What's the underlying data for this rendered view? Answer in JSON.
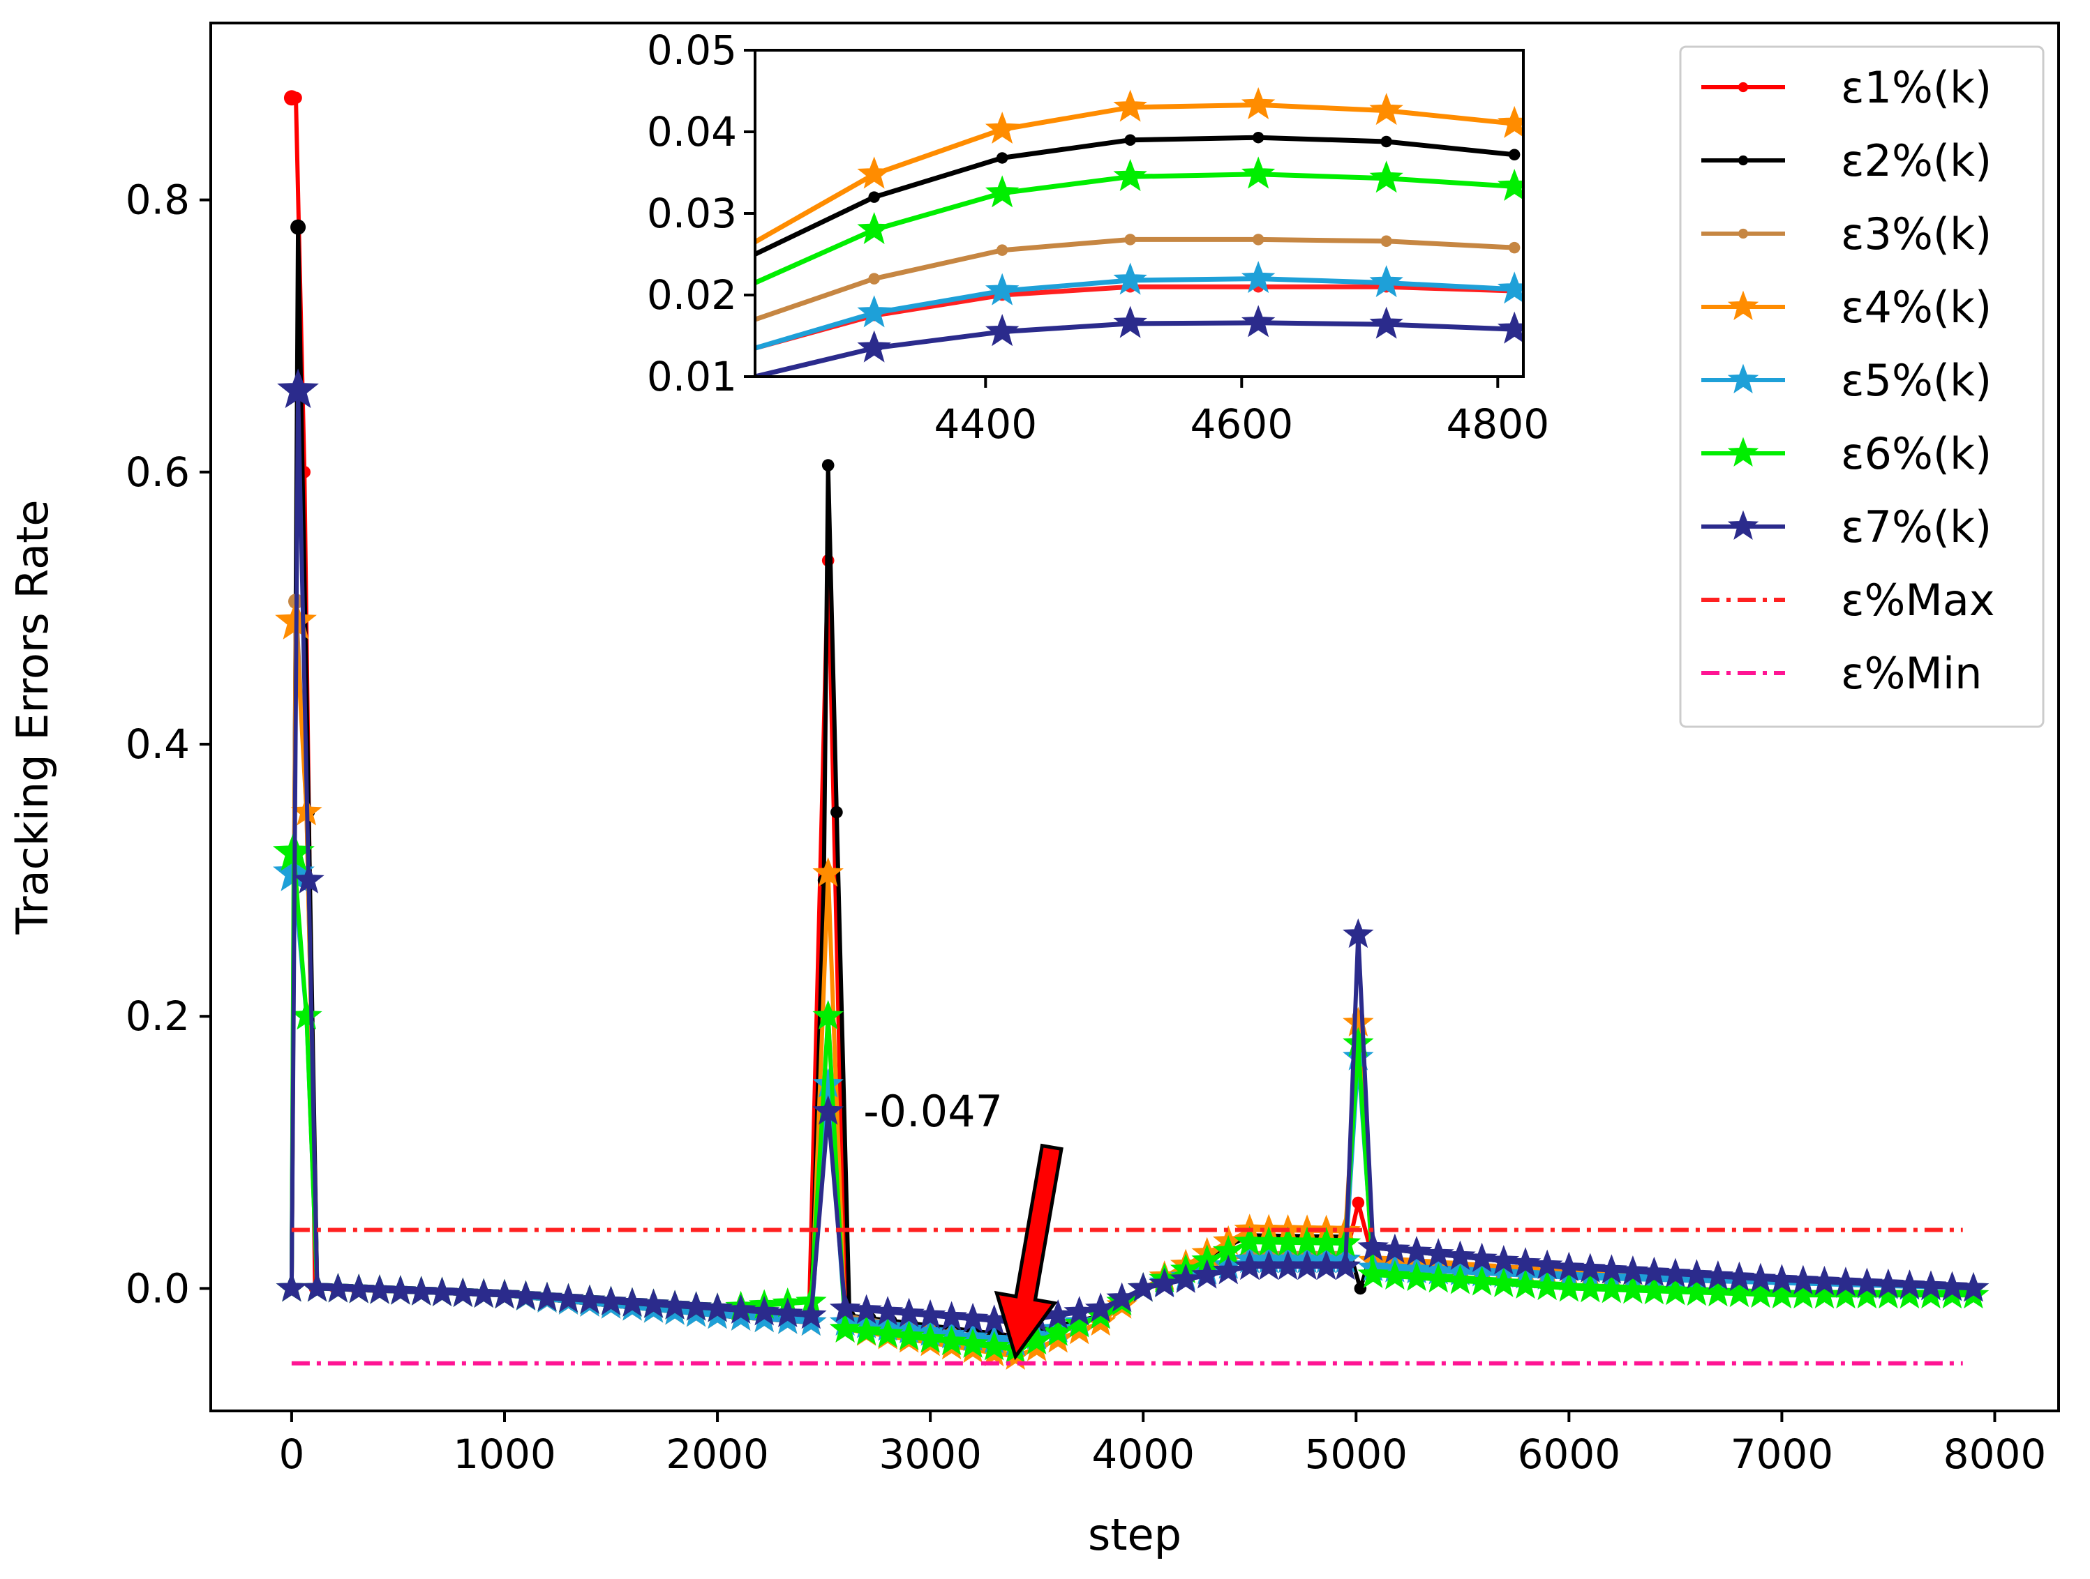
{
  "chart_data": [
    {
      "id": "main",
      "type": "line",
      "title": "",
      "xlabel": "step",
      "ylabel": "Tracking Errors Rate",
      "xlim": [
        -380,
        8300
      ],
      "ylim": [
        -0.09,
        0.93
      ],
      "xticks": [
        0,
        1000,
        2000,
        3000,
        4000,
        5000,
        6000,
        7000,
        8000
      ],
      "xtick_labels": [
        "0",
        "1000",
        "2000",
        "3000",
        "4000",
        "5000",
        "6000",
        "7000",
        "8000"
      ],
      "yticks": [
        0.0,
        0.2,
        0.4,
        0.6,
        0.8
      ],
      "ytick_labels": [
        "0.0",
        "0.2",
        "0.4",
        "0.6",
        "0.8"
      ],
      "grid": false,
      "legend_position": "top-right",
      "series": [
        {
          "name": "ε1%(k)",
          "color": "#ff0000",
          "marker": "dot",
          "points": [
            [
              0,
              0.875
            ],
            [
              20,
              0.875
            ],
            [
              60,
              0.6
            ],
            [
              110,
              0.0
            ],
            [
              1000,
              -0.005
            ],
            [
              2000,
              -0.02
            ],
            [
              2430,
              -0.025
            ],
            [
              2520,
              0.535
            ],
            [
              2600,
              -0.02
            ],
            [
              3400,
              -0.035
            ],
            [
              3800,
              -0.02
            ],
            [
              4000,
              0.0
            ],
            [
              4500,
              0.021
            ],
            [
              4950,
              0.021
            ],
            [
              5010,
              0.063
            ],
            [
              5080,
              0.021
            ],
            [
              6000,
              0.012
            ],
            [
              7000,
              0.006
            ],
            [
              7900,
              0.0
            ]
          ]
        },
        {
          "name": "ε2%(k)",
          "color": "#000000",
          "marker": "dot",
          "points": [
            [
              0,
              0.0
            ],
            [
              30,
              0.78
            ],
            [
              80,
              0.35
            ],
            [
              120,
              0.0
            ],
            [
              1000,
              -0.005
            ],
            [
              2000,
              -0.02
            ],
            [
              2440,
              -0.025
            ],
            [
              2500,
              0.3
            ],
            [
              2520,
              0.605
            ],
            [
              2560,
              0.35
            ],
            [
              2620,
              -0.02
            ],
            [
              3400,
              -0.035
            ],
            [
              3800,
              -0.02
            ],
            [
              4000,
              0.0
            ],
            [
              4500,
              0.039
            ],
            [
              4950,
              0.038
            ],
            [
              5020,
              0.0
            ],
            [
              5080,
              0.03
            ],
            [
              6000,
              0.015
            ],
            [
              7000,
              0.006
            ],
            [
              7900,
              0.0
            ]
          ]
        },
        {
          "name": "ε3%(k)",
          "color": "#c68642",
          "marker": "dot",
          "points": [
            [
              0,
              0.0
            ],
            [
              20,
              0.505
            ],
            [
              70,
              0.35
            ],
            [
              120,
              0.0
            ],
            [
              1000,
              -0.005
            ],
            [
              2000,
              -0.02
            ],
            [
              2440,
              -0.025
            ],
            [
              2520,
              0.2
            ],
            [
              2600,
              -0.02
            ],
            [
              3400,
              -0.04
            ],
            [
              3800,
              -0.02
            ],
            [
              4000,
              0.0
            ],
            [
              4500,
              0.026
            ],
            [
              4950,
              0.026
            ],
            [
              5010,
              0.2
            ],
            [
              5080,
              0.02
            ],
            [
              6000,
              0.01
            ],
            [
              7000,
              0.005
            ],
            [
              7900,
              0.0
            ]
          ]
        },
        {
          "name": "ε4%(k)",
          "color": "#ff8c00",
          "marker": "star",
          "points": [
            [
              0,
              0.0
            ],
            [
              20,
              0.49
            ],
            [
              70,
              0.35
            ],
            [
              120,
              0.0
            ],
            [
              1000,
              -0.005
            ],
            [
              2000,
              -0.02
            ],
            [
              2440,
              -0.025
            ],
            [
              2520,
              0.305
            ],
            [
              2600,
              -0.03
            ],
            [
              3400,
              -0.05
            ],
            [
              3800,
              -0.025
            ],
            [
              4000,
              0.0
            ],
            [
              4500,
              0.043
            ],
            [
              4950,
              0.042
            ],
            [
              5010,
              0.195
            ],
            [
              5080,
              0.02
            ],
            [
              6000,
              0.01
            ],
            [
              7000,
              0.005
            ],
            [
              7900,
              0.0
            ]
          ]
        },
        {
          "name": "ε5%(k)",
          "color": "#1ea0d8",
          "marker": "star",
          "points": [
            [
              0,
              0.0
            ],
            [
              10,
              0.305
            ],
            [
              70,
              0.2
            ],
            [
              120,
              0.0
            ],
            [
              1000,
              -0.005
            ],
            [
              2000,
              -0.02
            ],
            [
              2440,
              -0.025
            ],
            [
              2520,
              0.15
            ],
            [
              2600,
              -0.025
            ],
            [
              3400,
              -0.04
            ],
            [
              3800,
              -0.02
            ],
            [
              4000,
              0.0
            ],
            [
              4500,
              0.021
            ],
            [
              4950,
              0.021
            ],
            [
              5010,
              0.17
            ],
            [
              5080,
              0.015
            ],
            [
              6000,
              0.008
            ],
            [
              7000,
              0.004
            ],
            [
              7900,
              0.0
            ]
          ]
        },
        {
          "name": "ε6%(k)",
          "color": "#00ee00",
          "marker": "star",
          "points": [
            [
              0,
              0.0
            ],
            [
              10,
              0.32
            ],
            [
              70,
              0.2
            ],
            [
              120,
              0.0
            ],
            [
              1000,
              -0.005
            ],
            [
              2000,
              -0.015
            ],
            [
              2440,
              -0.01
            ],
            [
              2520,
              0.2
            ],
            [
              2600,
              -0.03
            ],
            [
              3400,
              -0.045
            ],
            [
              3800,
              -0.02
            ],
            [
              4000,
              0.0
            ],
            [
              4500,
              0.034
            ],
            [
              4950,
              0.033
            ],
            [
              5010,
              0.18
            ],
            [
              5080,
              0.01
            ],
            [
              6000,
              0.0
            ],
            [
              7000,
              -0.005
            ],
            [
              7900,
              -0.005
            ]
          ]
        },
        {
          "name": "ε7%(k)",
          "color": "#2b2b8c",
          "marker": "star",
          "points": [
            [
              0,
              0.0
            ],
            [
              30,
              0.66
            ],
            [
              80,
              0.3
            ],
            [
              120,
              0.0
            ],
            [
              1000,
              -0.005
            ],
            [
              2000,
              -0.015
            ],
            [
              2440,
              -0.02
            ],
            [
              2520,
              0.13
            ],
            [
              2600,
              -0.015
            ],
            [
              3400,
              -0.025
            ],
            [
              3800,
              -0.015
            ],
            [
              4000,
              0.0
            ],
            [
              4500,
              0.016
            ],
            [
              4950,
              0.016
            ],
            [
              5010,
              0.26
            ],
            [
              5080,
              0.03
            ],
            [
              6000,
              0.015
            ],
            [
              7000,
              0.006
            ],
            [
              7900,
              0.0
            ]
          ]
        },
        {
          "name": "ε%Max",
          "color": "#ff2020",
          "style": "dashdot",
          "points": [
            [
              0,
              0.043
            ],
            [
              7850,
              0.043
            ]
          ]
        },
        {
          "name": "ε%Min",
          "color": "#ff1493",
          "style": "dashdot",
          "points": [
            [
              0,
              -0.055
            ],
            [
              7850,
              -0.055
            ]
          ]
        }
      ],
      "annotations": [
        {
          "text": "-0.047",
          "x": 3400,
          "y": -0.05,
          "arrow": true,
          "arrow_color": "#ff0000"
        }
      ]
    },
    {
      "id": "inset",
      "type": "line",
      "title": "",
      "xlabel": "",
      "ylabel": "",
      "xlim": [
        4220,
        4820
      ],
      "ylim": [
        0.01,
        0.05
      ],
      "xticks": [
        4400,
        4600,
        4800
      ],
      "xtick_labels": [
        "4400",
        "4600",
        "4800"
      ],
      "yticks": [
        0.01,
        0.02,
        0.03,
        0.04,
        0.05
      ],
      "ytick_labels": [
        "0.01",
        "0.02",
        "0.03",
        "0.04",
        "0.05"
      ],
      "grid": false,
      "x": [
        4220,
        4313,
        4413,
        4513,
        4613,
        4713,
        4813
      ],
      "series": [
        {
          "name": "ε1%(k)",
          "color": "#ff2020",
          "marker": "dot",
          "values": [
            0.0135,
            0.0175,
            0.02,
            0.021,
            0.021,
            0.021,
            0.0205
          ]
        },
        {
          "name": "ε2%(k)",
          "color": "#000000",
          "marker": "dot",
          "values": [
            0.025,
            0.032,
            0.0368,
            0.039,
            0.0393,
            0.0388,
            0.0372
          ]
        },
        {
          "name": "ε3%(k)",
          "color": "#c68642",
          "marker": "dot",
          "values": [
            0.017,
            0.022,
            0.0255,
            0.0268,
            0.0268,
            0.0266,
            0.0258
          ]
        },
        {
          "name": "ε4%(k)",
          "color": "#ff8c00",
          "marker": "star",
          "values": [
            0.0265,
            0.0348,
            0.0403,
            0.043,
            0.0433,
            0.0426,
            0.041
          ]
        },
        {
          "name": "ε5%(k)",
          "color": "#1ea0d8",
          "marker": "star",
          "values": [
            0.0135,
            0.0178,
            0.0205,
            0.0218,
            0.022,
            0.0215,
            0.0207
          ]
        },
        {
          "name": "ε6%(k)",
          "color": "#00ee00",
          "marker": "star",
          "values": [
            0.0215,
            0.028,
            0.0325,
            0.0345,
            0.0348,
            0.0343,
            0.0333
          ]
        },
        {
          "name": "ε7%(k)",
          "color": "#2b2b8c",
          "marker": "star",
          "values": [
            0.01,
            0.0135,
            0.0155,
            0.0165,
            0.0166,
            0.0164,
            0.0158
          ]
        }
      ]
    }
  ]
}
